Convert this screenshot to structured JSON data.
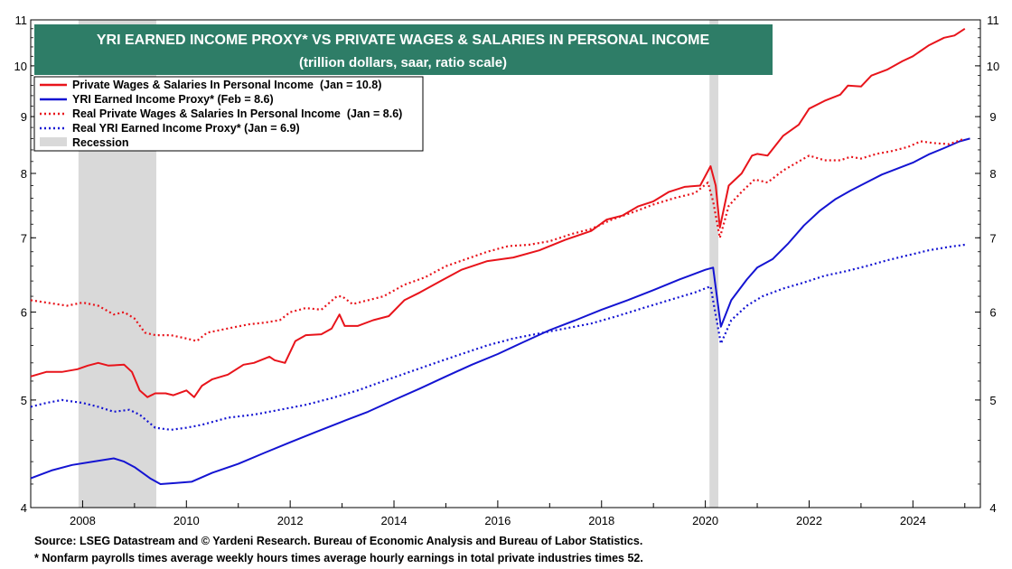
{
  "chart_data": {
    "type": "line",
    "title": "YRI EARNED INCOME PROXY* VS PRIVATE WAGES & SALARIES IN PERSONAL INCOME",
    "subtitle": "(trillion dollars, saar, ratio scale)",
    "scale": "log",
    "ylim": [
      4,
      11
    ],
    "xlim": [
      2007.0,
      2025.3
    ],
    "y_ticks": [
      4,
      5,
      6,
      7,
      8,
      9,
      10,
      11
    ],
    "x_ticks": [
      2008,
      2010,
      2012,
      2014,
      2016,
      2018,
      2020,
      2022,
      2024
    ],
    "grid": false,
    "legend_position": "top-left",
    "colors": {
      "red": "#e8141b",
      "blue": "#1414d2",
      "recession": "#d9d9d9",
      "title_bg": "#2e7d67"
    },
    "recessions": [
      [
        2007.92,
        2009.42
      ],
      [
        2020.08,
        2020.25
      ]
    ],
    "series": [
      {
        "name": "Private Wages & Salaries In Personal Income  (Jan = 10.8)",
        "color": "#e8141b",
        "style": "solid",
        "x": [
          2007.0,
          2007.3,
          2007.6,
          2007.9,
          2008.1,
          2008.3,
          2008.5,
          2008.8,
          2008.95,
          2009.1,
          2009.25,
          2009.4,
          2009.6,
          2009.75,
          2010.0,
          2010.15,
          2010.3,
          2010.5,
          2010.8,
          2011.1,
          2011.3,
          2011.6,
          2011.7,
          2011.9,
          2012.1,
          2012.3,
          2012.6,
          2012.8,
          2012.95,
          2013.05,
          2013.3,
          2013.6,
          2013.9,
          2014.2,
          2014.5,
          2014.9,
          2015.3,
          2015.8,
          2016.3,
          2016.8,
          2017.3,
          2017.8,
          2018.1,
          2018.4,
          2018.7,
          2019.0,
          2019.3,
          2019.6,
          2019.9,
          2020.1,
          2020.2,
          2020.28,
          2020.45,
          2020.7,
          2020.9,
          2021.0,
          2021.2,
          2021.5,
          2021.8,
          2022.0,
          2022.3,
          2022.6,
          2022.75,
          2023.0,
          2023.2,
          2023.5,
          2023.8,
          2024.0,
          2024.3,
          2024.6,
          2024.8,
          2025.0
        ],
        "y": [
          5.25,
          5.3,
          5.3,
          5.33,
          5.37,
          5.4,
          5.37,
          5.38,
          5.3,
          5.1,
          5.03,
          5.07,
          5.07,
          5.05,
          5.1,
          5.03,
          5.15,
          5.22,
          5.27,
          5.38,
          5.4,
          5.47,
          5.43,
          5.4,
          5.65,
          5.72,
          5.73,
          5.8,
          5.97,
          5.83,
          5.83,
          5.9,
          5.95,
          6.15,
          6.25,
          6.4,
          6.55,
          6.67,
          6.72,
          6.82,
          6.97,
          7.1,
          7.27,
          7.33,
          7.47,
          7.55,
          7.7,
          7.78,
          7.8,
          8.12,
          7.8,
          7.15,
          7.8,
          8.0,
          8.3,
          8.33,
          8.3,
          8.65,
          8.85,
          9.15,
          9.3,
          9.42,
          9.6,
          9.58,
          9.8,
          9.92,
          10.1,
          10.2,
          10.43,
          10.6,
          10.65,
          10.8
        ]
      },
      {
        "name": "YRI Earned Income Proxy* (Feb = 8.6)",
        "color": "#1414d2",
        "style": "solid",
        "x": [
          2007.0,
          2007.4,
          2007.8,
          2008.2,
          2008.6,
          2008.8,
          2009.0,
          2009.3,
          2009.5,
          2009.8,
          2010.1,
          2010.5,
          2011.0,
          2011.5,
          2012.0,
          2012.5,
          2013.0,
          2013.5,
          2014.0,
          2014.5,
          2015.0,
          2015.5,
          2016.0,
          2016.5,
          2017.0,
          2017.5,
          2018.0,
          2018.5,
          2019.0,
          2019.5,
          2020.0,
          2020.15,
          2020.3,
          2020.5,
          2020.8,
          2021.0,
          2021.3,
          2021.6,
          2021.9,
          2022.2,
          2022.5,
          2022.8,
          2023.1,
          2023.4,
          2023.7,
          2024.0,
          2024.3,
          2024.6,
          2024.9,
          2025.1
        ],
        "y": [
          4.25,
          4.32,
          4.37,
          4.4,
          4.43,
          4.4,
          4.35,
          4.25,
          4.2,
          4.21,
          4.22,
          4.3,
          4.38,
          4.48,
          4.58,
          4.68,
          4.78,
          4.88,
          5.0,
          5.12,
          5.25,
          5.38,
          5.5,
          5.64,
          5.78,
          5.9,
          6.03,
          6.15,
          6.28,
          6.42,
          6.55,
          6.58,
          5.82,
          6.15,
          6.42,
          6.58,
          6.7,
          6.92,
          7.18,
          7.4,
          7.58,
          7.72,
          7.85,
          7.98,
          8.08,
          8.18,
          8.32,
          8.43,
          8.55,
          8.6
        ]
      },
      {
        "name": "Real Private Wages & Salaries In Personal Income  (Jan = 8.6)",
        "color": "#e8141b",
        "style": "dotted",
        "x": [
          2007.0,
          2007.3,
          2007.7,
          2008.0,
          2008.3,
          2008.6,
          2008.8,
          2009.0,
          2009.2,
          2009.4,
          2009.7,
          2010.0,
          2010.2,
          2010.4,
          2010.8,
          2011.2,
          2011.5,
          2011.8,
          2012.0,
          2012.3,
          2012.6,
          2012.9,
          2013.0,
          2013.2,
          2013.5,
          2013.8,
          2014.2,
          2014.6,
          2015.0,
          2015.4,
          2015.8,
          2016.2,
          2016.6,
          2017.0,
          2017.4,
          2017.8,
          2018.2,
          2018.6,
          2019.0,
          2019.4,
          2019.8,
          2020.05,
          2020.15,
          2020.28,
          2020.45,
          2020.7,
          2020.95,
          2021.2,
          2021.5,
          2021.8,
          2022.0,
          2022.3,
          2022.6,
          2022.8,
          2023.0,
          2023.3,
          2023.6,
          2023.9,
          2024.15,
          2024.4,
          2024.7,
          2025.0
        ],
        "y": [
          6.15,
          6.12,
          6.08,
          6.12,
          6.08,
          5.97,
          6.0,
          5.92,
          5.75,
          5.72,
          5.72,
          5.68,
          5.65,
          5.75,
          5.8,
          5.85,
          5.87,
          5.9,
          6.0,
          6.05,
          6.03,
          6.2,
          6.2,
          6.1,
          6.15,
          6.2,
          6.35,
          6.45,
          6.6,
          6.7,
          6.8,
          6.88,
          6.9,
          6.95,
          7.05,
          7.13,
          7.27,
          7.38,
          7.5,
          7.6,
          7.68,
          7.85,
          7.55,
          7.0,
          7.48,
          7.7,
          7.9,
          7.85,
          8.05,
          8.2,
          8.3,
          8.22,
          8.22,
          8.28,
          8.25,
          8.33,
          8.38,
          8.45,
          8.55,
          8.52,
          8.5,
          8.6
        ]
      },
      {
        "name": "Real YRI Earned Income Proxy* (Jan = 6.9)",
        "color": "#1414d2",
        "style": "dotted",
        "x": [
          2007.0,
          2007.3,
          2007.6,
          2008.0,
          2008.3,
          2008.6,
          2008.9,
          2009.1,
          2009.4,
          2009.7,
          2010.0,
          2010.3,
          2010.8,
          2011.3,
          2011.8,
          2012.3,
          2012.8,
          2013.3,
          2013.8,
          2014.3,
          2014.8,
          2015.3,
          2015.8,
          2016.3,
          2016.8,
          2017.3,
          2017.8,
          2018.3,
          2018.8,
          2019.3,
          2019.8,
          2020.1,
          2020.3,
          2020.5,
          2020.8,
          2021.1,
          2021.5,
          2021.9,
          2022.3,
          2022.7,
          2023.1,
          2023.5,
          2023.9,
          2024.3,
          2024.7,
          2025.0
        ],
        "y": [
          4.93,
          4.97,
          5.0,
          4.97,
          4.93,
          4.88,
          4.9,
          4.85,
          4.72,
          4.7,
          4.72,
          4.75,
          4.82,
          4.85,
          4.9,
          4.95,
          5.02,
          5.1,
          5.2,
          5.3,
          5.4,
          5.5,
          5.6,
          5.68,
          5.74,
          5.8,
          5.86,
          5.95,
          6.05,
          6.15,
          6.25,
          6.33,
          5.62,
          5.9,
          6.08,
          6.2,
          6.3,
          6.38,
          6.47,
          6.53,
          6.6,
          6.68,
          6.75,
          6.82,
          6.87,
          6.9
        ]
      }
    ],
    "legend_recession_label": "Recession"
  },
  "footnotes": {
    "source": "Source: LSEG Datastream and © Yardeni Research. Bureau of Economic Analysis and Bureau of Labor Statistics.",
    "note": "* Nonfarm payrolls times average weekly hours times average hourly earnings in total private industries times 52."
  }
}
